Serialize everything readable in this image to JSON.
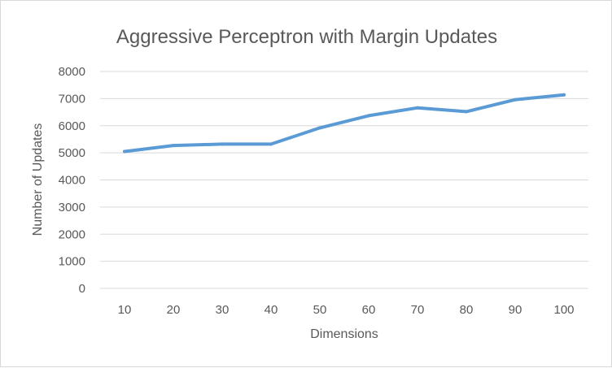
{
  "chart_data": {
    "type": "line",
    "title": "Aggressive Perceptron with Margin Updates",
    "xlabel": "Dimensions",
    "ylabel": "Number of Updates",
    "categories": [
      "10",
      "20",
      "30",
      "40",
      "50",
      "60",
      "70",
      "80",
      "90",
      "100"
    ],
    "series": [
      {
        "values": [
          5050,
          5270,
          5320,
          5320,
          5920,
          6370,
          6660,
          6520,
          6960,
          7140
        ],
        "color": "#5b9bd5"
      }
    ],
    "ylim": [
      0,
      8000
    ],
    "yticks": [
      "0",
      "1000",
      "2000",
      "3000",
      "4000",
      "5000",
      "6000",
      "7000",
      "8000"
    ],
    "grid": true,
    "legend": "none"
  }
}
